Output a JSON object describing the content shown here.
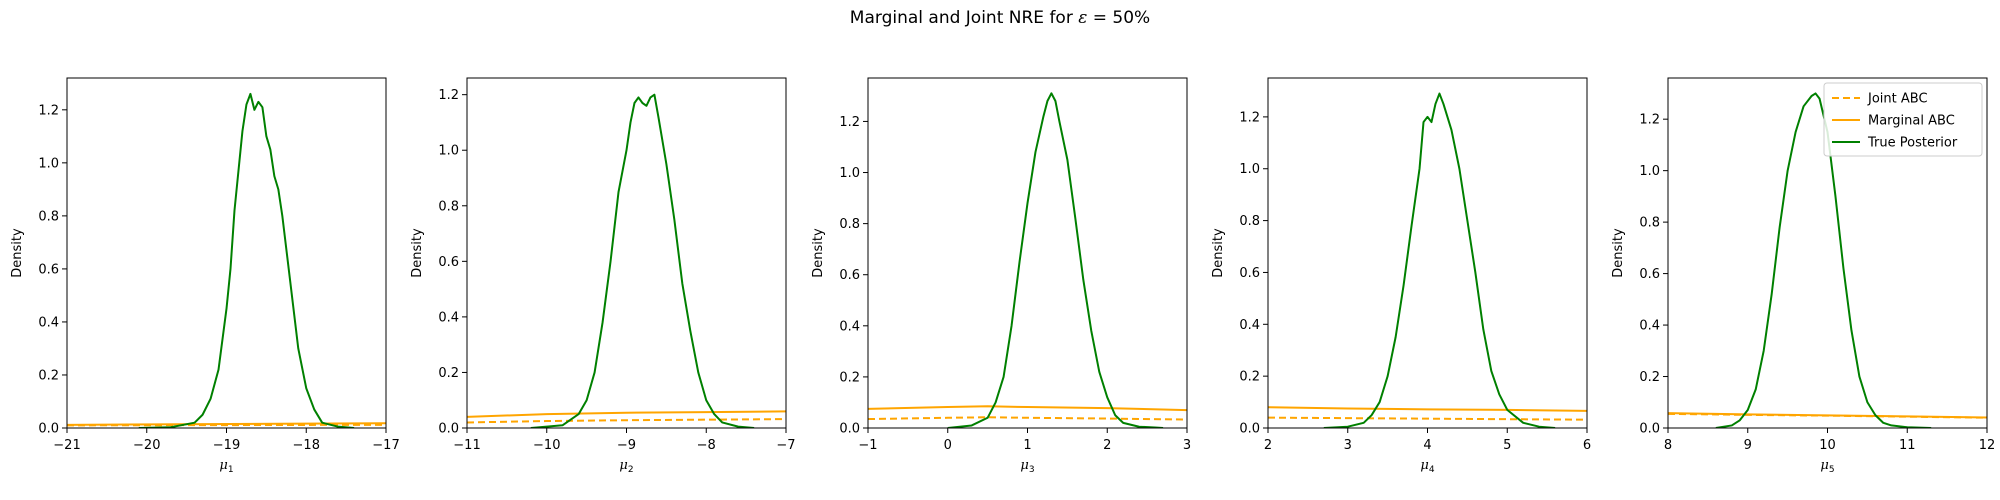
{
  "figure": {
    "title_prefix": "Marginal and Joint NRE for ",
    "title_eps": "ε",
    "title_suffix": " =  50%"
  },
  "legend": {
    "placement": "top-right of last panel",
    "entries": [
      {
        "label": "Joint ABC",
        "style": "dashed",
        "color": "#ffa500"
      },
      {
        "label": "Marginal ABC",
        "style": "solid",
        "color": "#ffa500"
      },
      {
        "label": "True Posterior",
        "style": "solid",
        "color": "#008000"
      }
    ]
  },
  "colors": {
    "abc": "#ffa500",
    "true_posterior": "#008000"
  },
  "chart_data": [
    {
      "type": "line",
      "xlabel_base": "μ",
      "xlabel_sub": "1",
      "ylabel": "Density",
      "xlim": [
        -21,
        -17
      ],
      "ylim": [
        0,
        1.32
      ],
      "xticks": [
        -21,
        -20,
        -19,
        -18,
        -17
      ],
      "yticks": [
        0.0,
        0.2,
        0.4,
        0.6,
        0.8,
        1.0,
        1.2
      ],
      "grid": false,
      "series": [
        {
          "name": "Joint ABC",
          "x": [
            -21,
            -17
          ],
          "y": [
            0.01,
            0.012
          ]
        },
        {
          "name": "Marginal ABC",
          "x": [
            -21,
            -17
          ],
          "y": [
            0.012,
            0.018
          ]
        },
        {
          "name": "True Posterior",
          "x": [
            -20.1,
            -19.7,
            -19.4,
            -19.3,
            -19.2,
            -19.1,
            -19.0,
            -18.95,
            -18.9,
            -18.85,
            -18.8,
            -18.75,
            -18.7,
            -18.65,
            -18.6,
            -18.55,
            -18.5,
            -18.45,
            -18.4,
            -18.35,
            -18.3,
            -18.2,
            -18.1,
            -18.0,
            -17.9,
            -17.8,
            -17.6,
            -17.4
          ],
          "y": [
            0.0,
            0.003,
            0.02,
            0.05,
            0.11,
            0.22,
            0.45,
            0.6,
            0.82,
            0.97,
            1.12,
            1.22,
            1.26,
            1.2,
            1.23,
            1.21,
            1.1,
            1.05,
            0.95,
            0.9,
            0.8,
            0.55,
            0.3,
            0.15,
            0.07,
            0.02,
            0.005,
            0.0
          ]
        }
      ]
    },
    {
      "type": "line",
      "xlabel_base": "μ",
      "xlabel_sub": "2",
      "ylabel": "Density",
      "xlim": [
        -11,
        -7
      ],
      "ylim": [
        0,
        1.26
      ],
      "xticks": [
        -11,
        -10,
        -9,
        -8,
        -7
      ],
      "yticks": [
        0.0,
        0.2,
        0.4,
        0.6,
        0.8,
        1.0,
        1.2
      ],
      "grid": false,
      "series": [
        {
          "name": "Joint ABC",
          "x": [
            -11,
            -10,
            -9,
            -8,
            -7
          ],
          "y": [
            0.02,
            0.025,
            0.028,
            0.03,
            0.032
          ]
        },
        {
          "name": "Marginal ABC",
          "x": [
            -11,
            -10,
            -9,
            -8,
            -7
          ],
          "y": [
            0.04,
            0.05,
            0.055,
            0.057,
            0.06
          ]
        },
        {
          "name": "True Posterior",
          "x": [
            -10.2,
            -9.8,
            -9.6,
            -9.5,
            -9.4,
            -9.3,
            -9.2,
            -9.1,
            -9.0,
            -8.95,
            -8.9,
            -8.85,
            -8.8,
            -8.75,
            -8.7,
            -8.65,
            -8.6,
            -8.5,
            -8.4,
            -8.3,
            -8.2,
            -8.1,
            -8.0,
            -7.9,
            -7.8,
            -7.6,
            -7.4
          ],
          "y": [
            0.0,
            0.01,
            0.05,
            0.1,
            0.2,
            0.38,
            0.6,
            0.85,
            1.0,
            1.1,
            1.17,
            1.19,
            1.17,
            1.16,
            1.19,
            1.2,
            1.12,
            0.95,
            0.75,
            0.52,
            0.35,
            0.2,
            0.1,
            0.05,
            0.02,
            0.005,
            0.0
          ]
        }
      ]
    },
    {
      "type": "line",
      "xlabel_base": "μ",
      "xlabel_sub": "3",
      "ylabel": "Density",
      "xlim": [
        -1,
        3
      ],
      "ylim": [
        0,
        1.37
      ],
      "xticks": [
        -1,
        0,
        1,
        2,
        3
      ],
      "yticks": [
        0.0,
        0.2,
        0.4,
        0.6,
        0.8,
        1.0,
        1.2
      ],
      "grid": false,
      "series": [
        {
          "name": "Joint ABC",
          "x": [
            -1,
            0,
            0.5,
            1,
            2,
            3
          ],
          "y": [
            0.035,
            0.04,
            0.042,
            0.04,
            0.037,
            0.033
          ]
        },
        {
          "name": "Marginal ABC",
          "x": [
            -1,
            0,
            0.5,
            1,
            2,
            3
          ],
          "y": [
            0.075,
            0.082,
            0.085,
            0.082,
            0.078,
            0.07
          ]
        },
        {
          "name": "True Posterior",
          "x": [
            0.0,
            0.3,
            0.5,
            0.6,
            0.7,
            0.8,
            0.9,
            1.0,
            1.1,
            1.15,
            1.2,
            1.25,
            1.3,
            1.35,
            1.4,
            1.5,
            1.6,
            1.7,
            1.8,
            1.9,
            2.0,
            2.1,
            2.2,
            2.4,
            2.6,
            2.7
          ],
          "y": [
            0.0,
            0.01,
            0.04,
            0.1,
            0.2,
            0.4,
            0.65,
            0.88,
            1.08,
            1.15,
            1.22,
            1.28,
            1.31,
            1.28,
            1.2,
            1.05,
            0.82,
            0.58,
            0.38,
            0.22,
            0.12,
            0.05,
            0.02,
            0.005,
            0.002,
            0.0
          ]
        }
      ]
    },
    {
      "type": "line",
      "xlabel_base": "μ",
      "xlabel_sub": "4",
      "ylabel": "Density",
      "xlim": [
        2,
        6
      ],
      "ylim": [
        0,
        1.35
      ],
      "xticks": [
        2,
        3,
        4,
        5,
        6
      ],
      "yticks": [
        0.0,
        0.2,
        0.4,
        0.6,
        0.8,
        1.0,
        1.2
      ],
      "grid": false,
      "series": [
        {
          "name": "Joint ABC",
          "x": [
            2,
            3,
            4,
            5,
            6
          ],
          "y": [
            0.04,
            0.038,
            0.036,
            0.034,
            0.032
          ]
        },
        {
          "name": "Marginal ABC",
          "x": [
            2,
            3,
            4,
            5,
            6
          ],
          "y": [
            0.08,
            0.075,
            0.072,
            0.07,
            0.066
          ]
        },
        {
          "name": "True Posterior",
          "x": [
            2.7,
            3.0,
            3.2,
            3.3,
            3.4,
            3.5,
            3.6,
            3.7,
            3.8,
            3.9,
            3.95,
            4.0,
            4.05,
            4.1,
            4.15,
            4.2,
            4.3,
            4.4,
            4.5,
            4.6,
            4.7,
            4.8,
            4.9,
            5.0,
            5.2,
            5.4,
            5.6
          ],
          "y": [
            0.0,
            0.005,
            0.02,
            0.05,
            0.1,
            0.2,
            0.35,
            0.55,
            0.78,
            1.0,
            1.18,
            1.2,
            1.18,
            1.25,
            1.29,
            1.25,
            1.15,
            1.0,
            0.8,
            0.6,
            0.38,
            0.22,
            0.13,
            0.07,
            0.02,
            0.005,
            0.0
          ]
        }
      ]
    },
    {
      "type": "line",
      "xlabel_base": "μ",
      "xlabel_sub": "5",
      "ylabel": "Density",
      "xlim": [
        8,
        12
      ],
      "ylim": [
        0,
        1.36
      ],
      "xticks": [
        8,
        9,
        10,
        11,
        12
      ],
      "yticks": [
        0.0,
        0.2,
        0.4,
        0.6,
        0.8,
        1.0,
        1.2
      ],
      "grid": false,
      "series": [
        {
          "name": "Joint ABC",
          "x": [
            8,
            9,
            10,
            11,
            12
          ],
          "y": [
            0.055,
            0.051,
            0.048,
            0.044,
            0.04
          ]
        },
        {
          "name": "Marginal ABC",
          "x": [
            8,
            9,
            10,
            11,
            12
          ],
          "y": [
            0.058,
            0.053,
            0.049,
            0.045,
            0.041
          ]
        },
        {
          "name": "True Posterior",
          "x": [
            8.6,
            8.8,
            8.9,
            9.0,
            9.1,
            9.2,
            9.3,
            9.4,
            9.5,
            9.6,
            9.7,
            9.8,
            9.85,
            9.9,
            10.0,
            10.1,
            10.2,
            10.3,
            10.4,
            10.5,
            10.6,
            10.7,
            10.8,
            11.0,
            11.3
          ],
          "y": [
            0.0,
            0.01,
            0.03,
            0.07,
            0.15,
            0.3,
            0.52,
            0.78,
            1.0,
            1.15,
            1.25,
            1.29,
            1.3,
            1.28,
            1.15,
            0.9,
            0.62,
            0.38,
            0.2,
            0.1,
            0.05,
            0.02,
            0.01,
            0.003,
            0.0
          ]
        }
      ]
    }
  ]
}
